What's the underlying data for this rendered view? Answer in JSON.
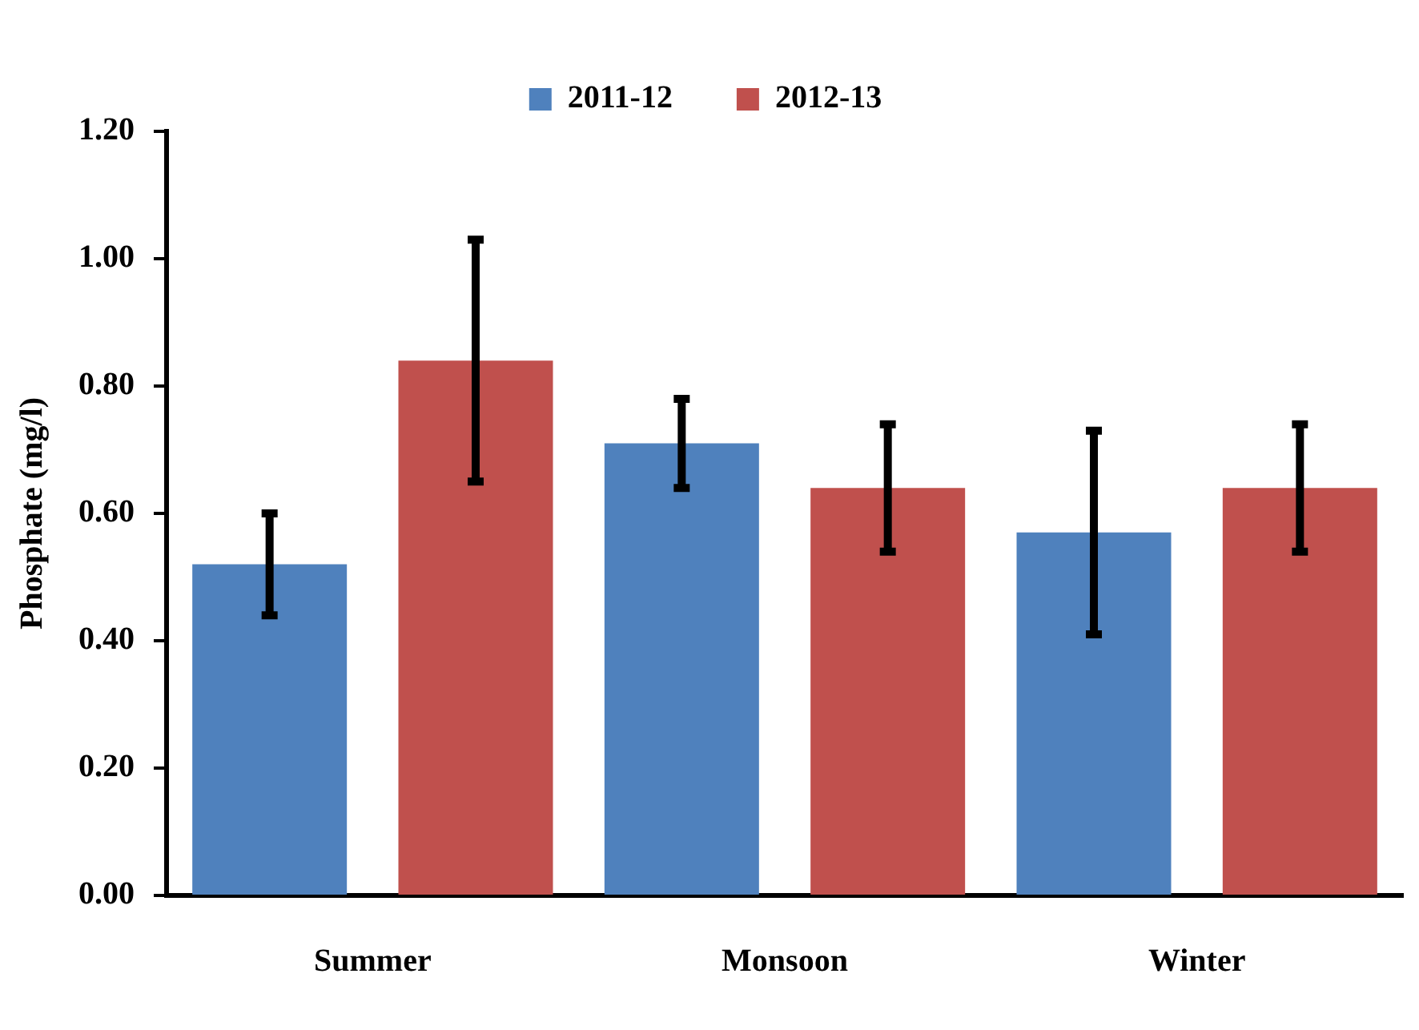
{
  "chart_data": {
    "type": "bar",
    "ylabel": "Phosphate (mg/l)",
    "categories": [
      "Summer",
      "Monsoon",
      "Winter"
    ],
    "series": [
      {
        "name": "2011-12",
        "color": "#4f81bd",
        "values": [
          0.52,
          0.71,
          0.57
        ],
        "errors": [
          0.08,
          0.07,
          0.16
        ]
      },
      {
        "name": "2012-13",
        "color": "#c0504d",
        "values": [
          0.84,
          0.64,
          0.64
        ],
        "errors": [
          0.19,
          0.1,
          0.1
        ]
      }
    ],
    "ylim": [
      0,
      1.2
    ],
    "yticks": [
      {
        "value": 0,
        "label": "0.00"
      },
      {
        "value": 0.2,
        "label": "0.20"
      },
      {
        "value": 0.4,
        "label": "0.40"
      },
      {
        "value": 0.6,
        "label": "0.60"
      },
      {
        "value": 0.8,
        "label": "0.80"
      },
      {
        "value": 1,
        "label": "1.00"
      },
      {
        "value": 1.2,
        "label": "1.20"
      }
    ],
    "grid": false,
    "legend": "top"
  }
}
